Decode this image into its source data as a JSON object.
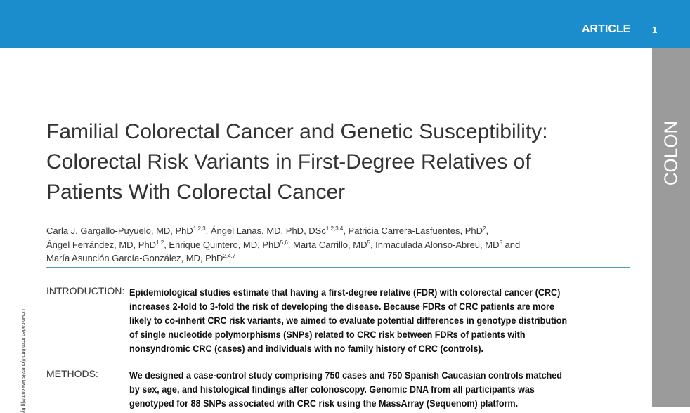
{
  "header": {
    "section": "ARTICLE",
    "page_number": "1"
  },
  "sidebar": {
    "label": "COLON"
  },
  "side_note": "Downloaded from http://journals.lww.com/ajg by",
  "title": {
    "lines": [
      "Familial Colorectal Cancer and Genetic Susceptibility:",
      "Colorectal Risk Variants in First-Degree Relatives of",
      "Patients With Colorectal Cancer"
    ]
  },
  "authors": {
    "lines": [
      [
        {
          "text": "Carla J. Gargallo-Puyuelo, MD, PhD"
        },
        {
          "sup": "1,2,3"
        },
        {
          "text": ", Ángel Lanas, MD, PhD, DSc"
        },
        {
          "sup": "1,2,3,4"
        },
        {
          "text": ", Patricia Carrera-Lasfuentes, PhD"
        },
        {
          "sup": "2"
        },
        {
          "text": ","
        }
      ],
      [
        {
          "text": "Ángel Ferrández, MD, PhD"
        },
        {
          "sup": "1,2"
        },
        {
          "text": ", Enrique Quintero, MD, PhD"
        },
        {
          "sup": "5,6"
        },
        {
          "text": ", Marta Carrillo, MD"
        },
        {
          "sup": "5"
        },
        {
          "text": ", Inmaculada Alonso-Abreu, MD"
        },
        {
          "sup": "5"
        },
        {
          "text": " and"
        }
      ],
      [
        {
          "text": "María Asunción García-González, MD, PhD"
        },
        {
          "sup": "2,4,7"
        }
      ]
    ]
  },
  "abstract": {
    "sections": [
      {
        "label": "INTRODUCTION:",
        "lines": [
          "Epidemiological studies estimate that having a first-degree relative (FDR) with colorectal cancer (CRC)",
          "increases 2-fold to 3-fold the risk of developing the disease. Because FDRs of CRC patients are more",
          "likely to co-inherit CRC risk variants, we aimed to evaluate potential differences in genotype distribution",
          "of single nucleotide polymorphisms (SNPs) related to CRC risk between FDRs of patients with",
          "nonsyndromic CRC (cases) and individuals with no family history of CRC (controls)."
        ]
      },
      {
        "label": "METHODS:",
        "lines": [
          "We designed a case-control study comprising 750 cases and 750 Spanish Caucasian controls matched",
          "by sex, age, and histological findings after colonoscopy. Genomic DNA from all participants was",
          "genotyped for 88 SNPs associated with CRC risk using the MassArray (Sequenom) platform."
        ]
      }
    ]
  }
}
